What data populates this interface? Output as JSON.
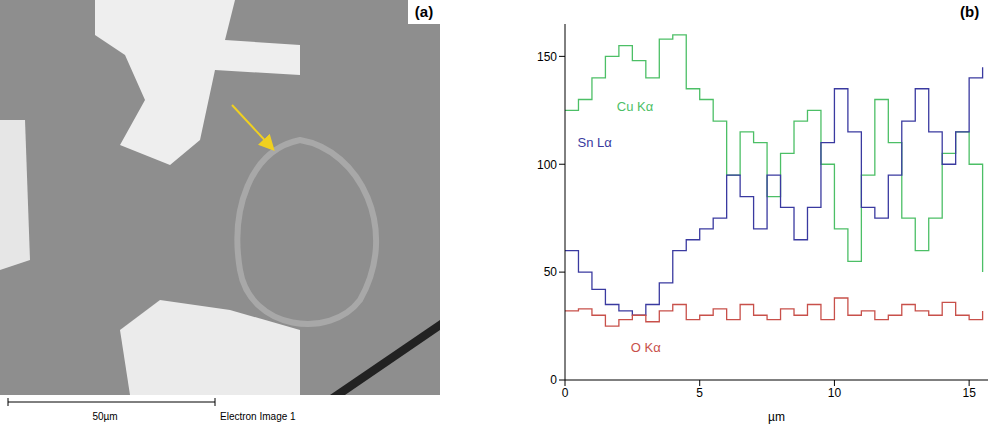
{
  "panel_a": {
    "label": "(a)",
    "scale_bar": "50µm",
    "caption": "Electron Image 1"
  },
  "chart_data": {
    "type": "line",
    "panel_label": "(b)",
    "xlabel": "µm",
    "x": [
      0,
      0.5,
      1,
      1.5,
      2,
      2.5,
      3,
      3.5,
      4,
      4.5,
      5,
      5.5,
      6,
      6.5,
      7,
      7.5,
      8,
      8.5,
      9,
      9.5,
      10,
      10.5,
      11,
      11.5,
      12,
      12.5,
      13,
      13.5,
      14,
      14.5,
      15,
      15.5
    ],
    "xlim": [
      0,
      15.7
    ],
    "xticks": [
      0,
      5,
      10,
      15
    ],
    "ylim": [
      0,
      165
    ],
    "yticks": [
      0,
      50,
      100,
      150
    ],
    "line_style": "step",
    "series": [
      {
        "name": "Cu Kα",
        "color": "#4cbf66",
        "values": [
          125,
          130,
          140,
          150,
          155,
          148,
          140,
          158,
          160,
          135,
          130,
          120,
          95,
          115,
          110,
          85,
          105,
          120,
          125,
          100,
          70,
          55,
          95,
          130,
          110,
          75,
          60,
          75,
          105,
          115,
          100,
          50
        ]
      },
      {
        "name": "Sn Lα",
        "color": "#3a3aa0",
        "values": [
          60,
          50,
          42,
          35,
          32,
          30,
          35,
          45,
          60,
          65,
          70,
          75,
          95,
          85,
          70,
          95,
          80,
          65,
          80,
          110,
          135,
          115,
          80,
          75,
          95,
          120,
          135,
          115,
          100,
          115,
          140,
          145
        ]
      },
      {
        "name": "O Kα",
        "color": "#c8504a",
        "values": [
          32,
          33,
          30,
          25,
          28,
          30,
          27,
          32,
          35,
          28,
          30,
          33,
          28,
          35,
          30,
          28,
          33,
          30,
          35,
          28,
          38,
          30,
          32,
          28,
          30,
          35,
          32,
          30,
          36,
          30,
          28,
          32
        ]
      }
    ]
  }
}
